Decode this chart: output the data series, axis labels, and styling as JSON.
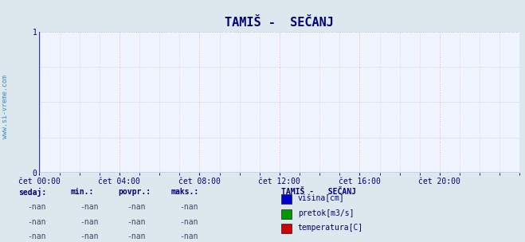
{
  "title": "TAMIŠ -  SEČANJ",
  "bg_color": "#dde8ee",
  "plot_bg_color": "#f0f4ff",
  "grid_color_h": "#aaaacc",
  "grid_color_v": "#ffaaaa",
  "axis_color": "#3333cc",
  "arrow_color": "#cc0000",
  "title_color": "#000077",
  "tick_color": "#000077",
  "ylabel_range": [
    0,
    1
  ],
  "yticks": [
    0,
    1
  ],
  "ytick_minor_step": 0.25,
  "xtick_labels": [
    "čet 00:00",
    "čet 04:00",
    "čet 08:00",
    "čet 12:00",
    "čet 16:00",
    "čet 20:00"
  ],
  "xtick_positions": [
    0,
    4,
    8,
    12,
    16,
    20
  ],
  "x_max": 24,
  "watermark": "www.si-vreme.com",
  "watermark_color": "#4488bb",
  "legend_title": "TAMIŠ -   SEČANJ",
  "legend_items": [
    {
      "label": "višina[cm]",
      "color": "#0000cc"
    },
    {
      "label": "pretok[m3/s]",
      "color": "#009900"
    },
    {
      "label": "temperatura[C]",
      "color": "#cc0000"
    }
  ],
  "table_headers": [
    "sedaj:",
    "min.:",
    "povpr.:",
    "maks.:"
  ],
  "table_rows": [
    [
      "-nan",
      "-nan",
      "-nan",
      "-nan"
    ],
    [
      "-nan",
      "-nan",
      "-nan",
      "-nan"
    ],
    [
      "-nan",
      "-nan",
      "-nan",
      "-nan"
    ]
  ],
  "text_color": "#000077",
  "font_family": "monospace",
  "fontsize_title": 11,
  "fontsize_tick": 7,
  "fontsize_table": 7,
  "fontsize_watermark": 6
}
